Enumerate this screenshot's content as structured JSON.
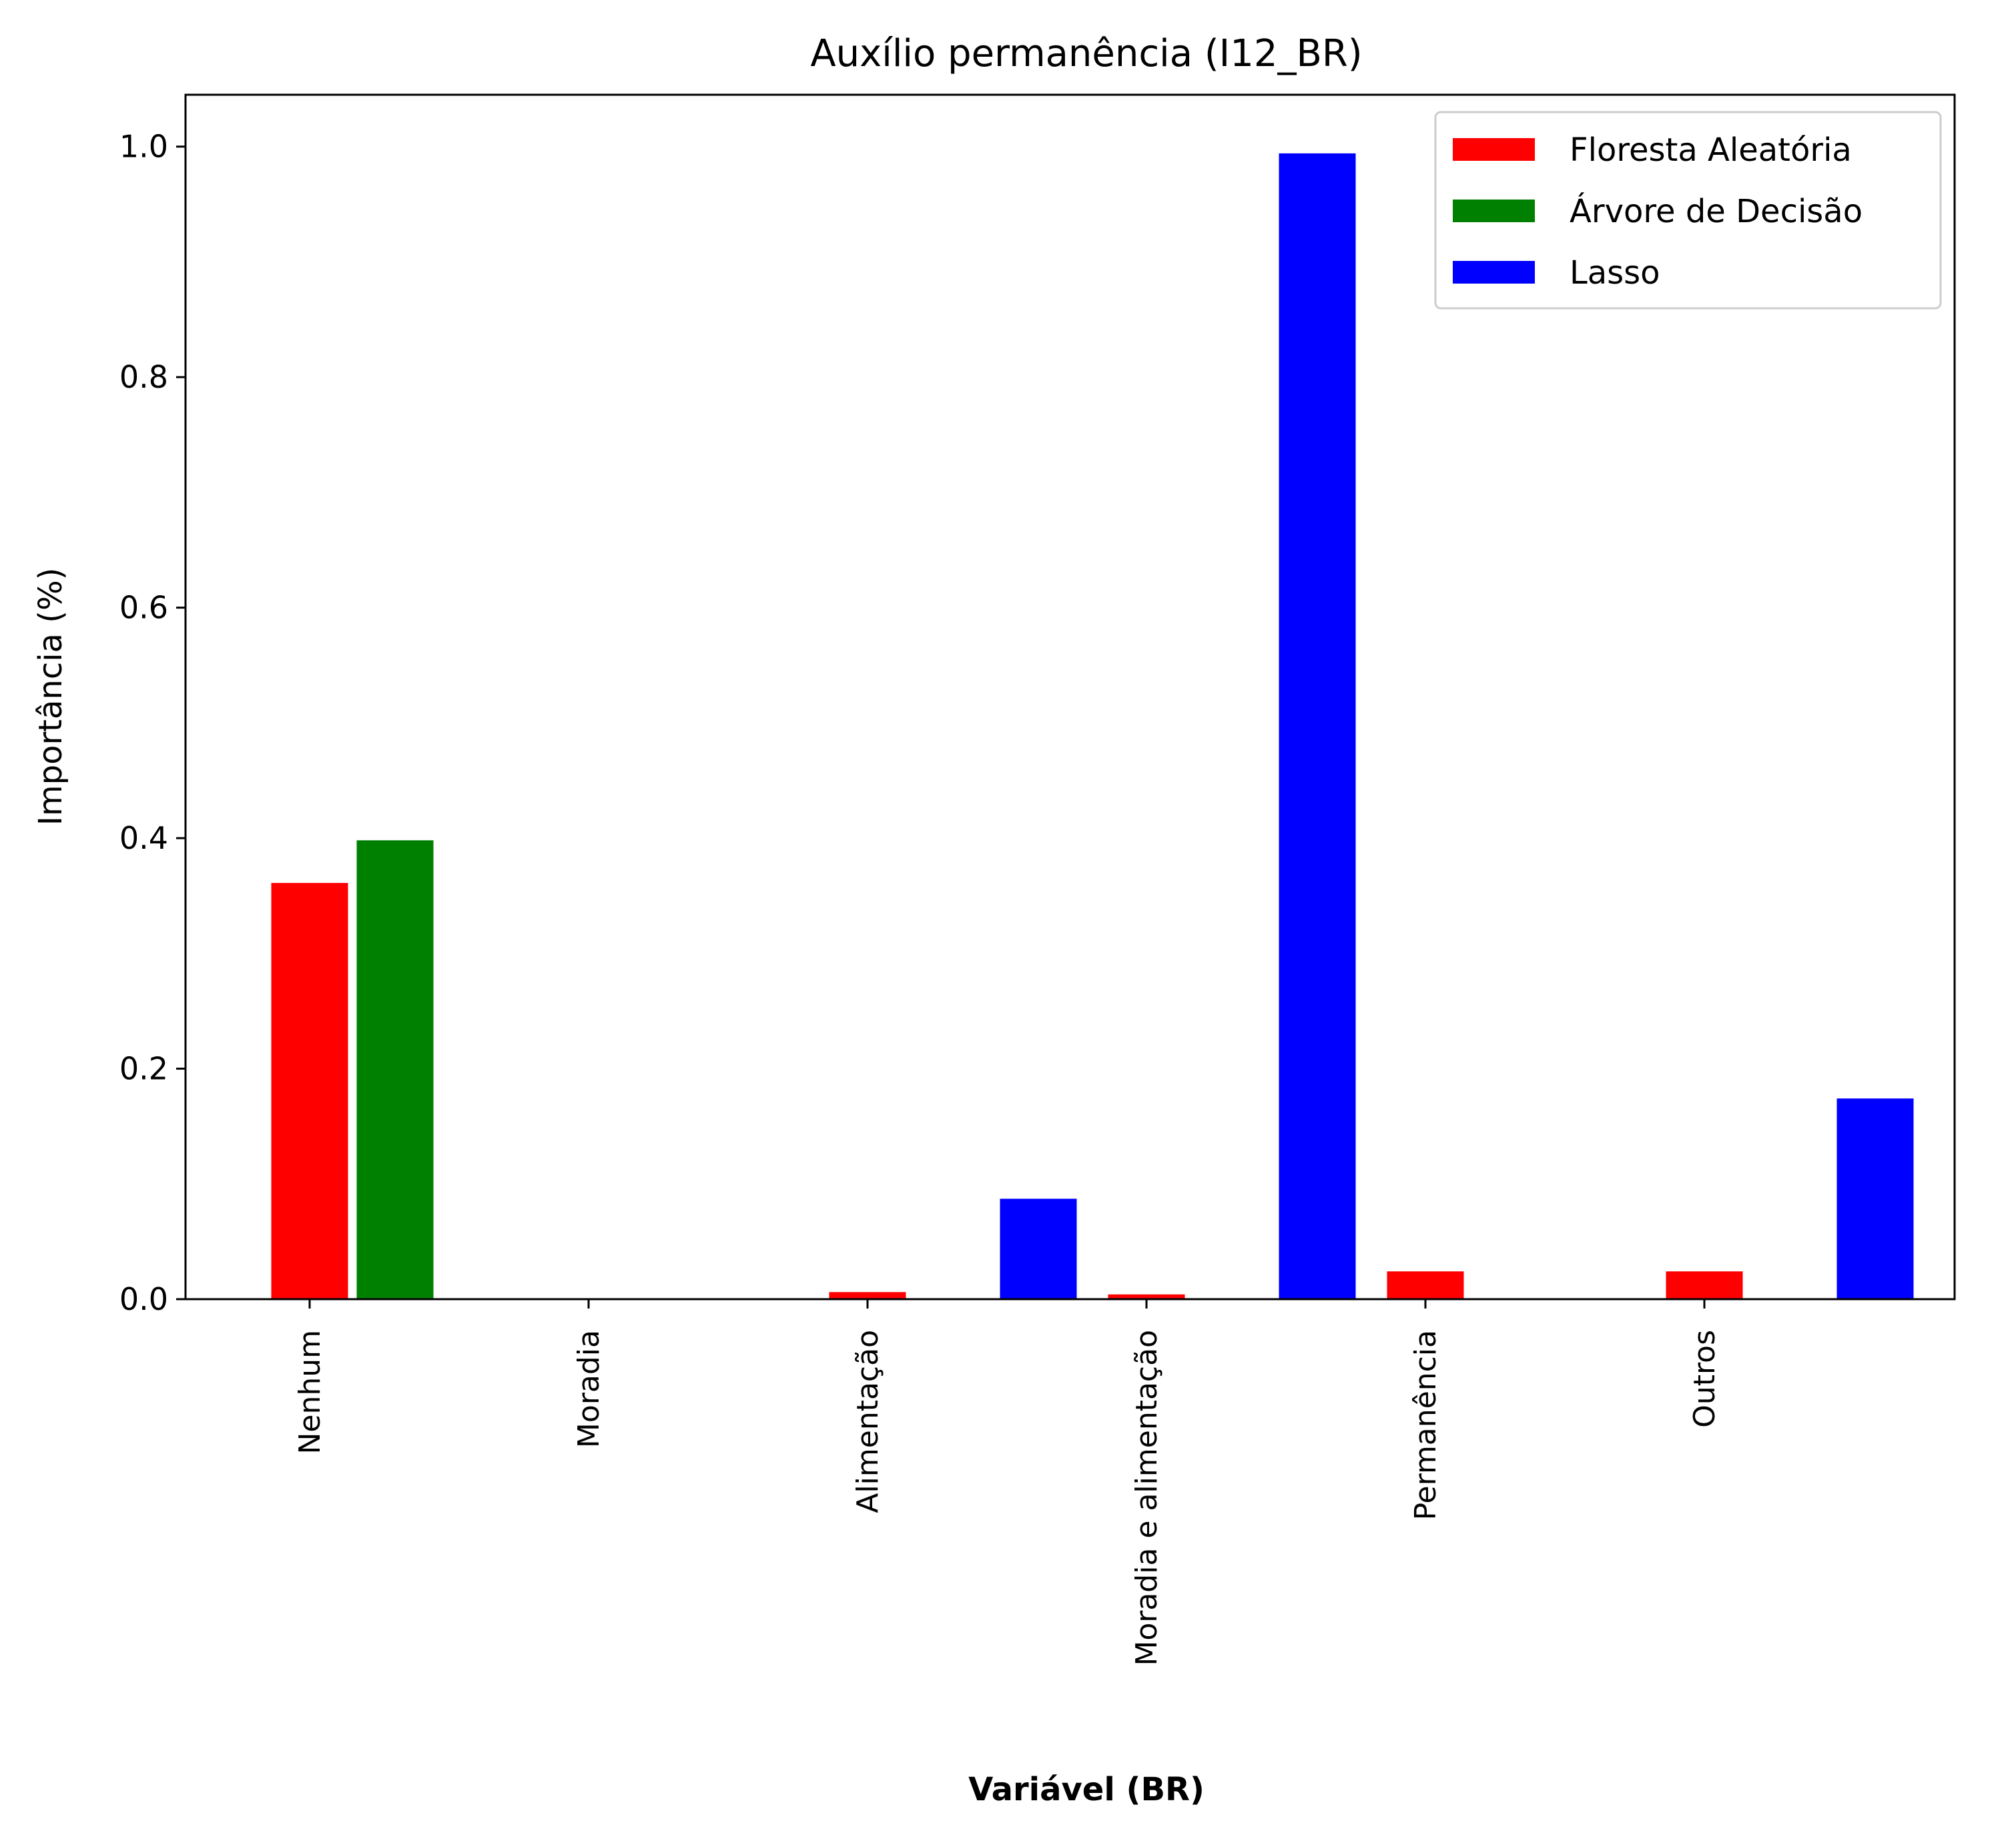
{
  "chart_data": {
    "type": "bar",
    "title": "Auxílio permanência (I12_BR)",
    "xlabel": "Variável (BR)",
    "ylabel": "Importância (%)",
    "categories": [
      "Nenhum",
      "Moradia",
      "Alimentação",
      "Moradia e alimentação",
      "Permanência",
      "Outros"
    ],
    "series": [
      {
        "name": "Floresta Aleatória",
        "color": "#ff0000",
        "values": [
          0.362,
          0.0,
          0.007,
          0.005,
          0.025,
          0.025
        ]
      },
      {
        "name": "Árvore de Decisão",
        "color": "#008000",
        "values": [
          0.399,
          0.0,
          0.0,
          0.0,
          0.0,
          0.0
        ]
      },
      {
        "name": "Lasso",
        "color": "#0000ff",
        "values": [
          0.0,
          0.0,
          0.088,
          0.995,
          0.0,
          0.175
        ]
      }
    ],
    "ylim": [
      0,
      1.045
    ],
    "yticks": [
      "0.0",
      "0.2",
      "0.4",
      "0.6",
      "0.8",
      "1.0"
    ],
    "legend_position": "top-right",
    "grid": false
  }
}
